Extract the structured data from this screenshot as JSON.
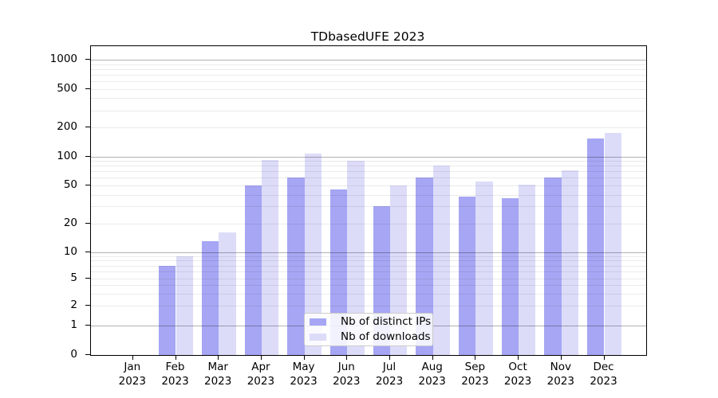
{
  "chart_data": {
    "type": "bar",
    "title": "TDbasedUFE 2023",
    "x_tick_labels": [
      {
        "month": "Jan",
        "year": "2023"
      },
      {
        "month": "Feb",
        "year": "2023"
      },
      {
        "month": "Mar",
        "year": "2023"
      },
      {
        "month": "Apr",
        "year": "2023"
      },
      {
        "month": "May",
        "year": "2023"
      },
      {
        "month": "Jun",
        "year": "2023"
      },
      {
        "month": "Jul",
        "year": "2023"
      },
      {
        "month": "Aug",
        "year": "2023"
      },
      {
        "month": "Sep",
        "year": "2023"
      },
      {
        "month": "Oct",
        "year": "2023"
      },
      {
        "month": "Nov",
        "year": "2023"
      },
      {
        "month": "Dec",
        "year": "2023"
      }
    ],
    "series": [
      {
        "name": "Nb of distinct IPs",
        "color": "#a6a6f4",
        "values": [
          0,
          7,
          13,
          50,
          60,
          45,
          30,
          60,
          38,
          37,
          60,
          153
        ]
      },
      {
        "name": "Nb of downloads",
        "color": "#dcdcf9",
        "values": [
          0,
          9,
          16,
          93,
          107,
          90,
          50,
          80,
          55,
          51,
          72,
          175
        ]
      }
    ],
    "y_axis": {
      "scale": "symlog",
      "ticks": [
        0,
        1,
        2,
        5,
        10,
        20,
        50,
        100,
        200,
        500,
        1000
      ],
      "ylim": [
        0,
        1400
      ],
      "major_grid_values": [
        1,
        10,
        100,
        1000
      ]
    },
    "grid": "both",
    "legend_position": "lower center",
    "colors": {
      "axis": "#000000",
      "major_grid": "rgba(0,0,0,0.30)",
      "minor_grid": "rgba(0,0,0,0.08)",
      "background": "#ffffff"
    }
  }
}
